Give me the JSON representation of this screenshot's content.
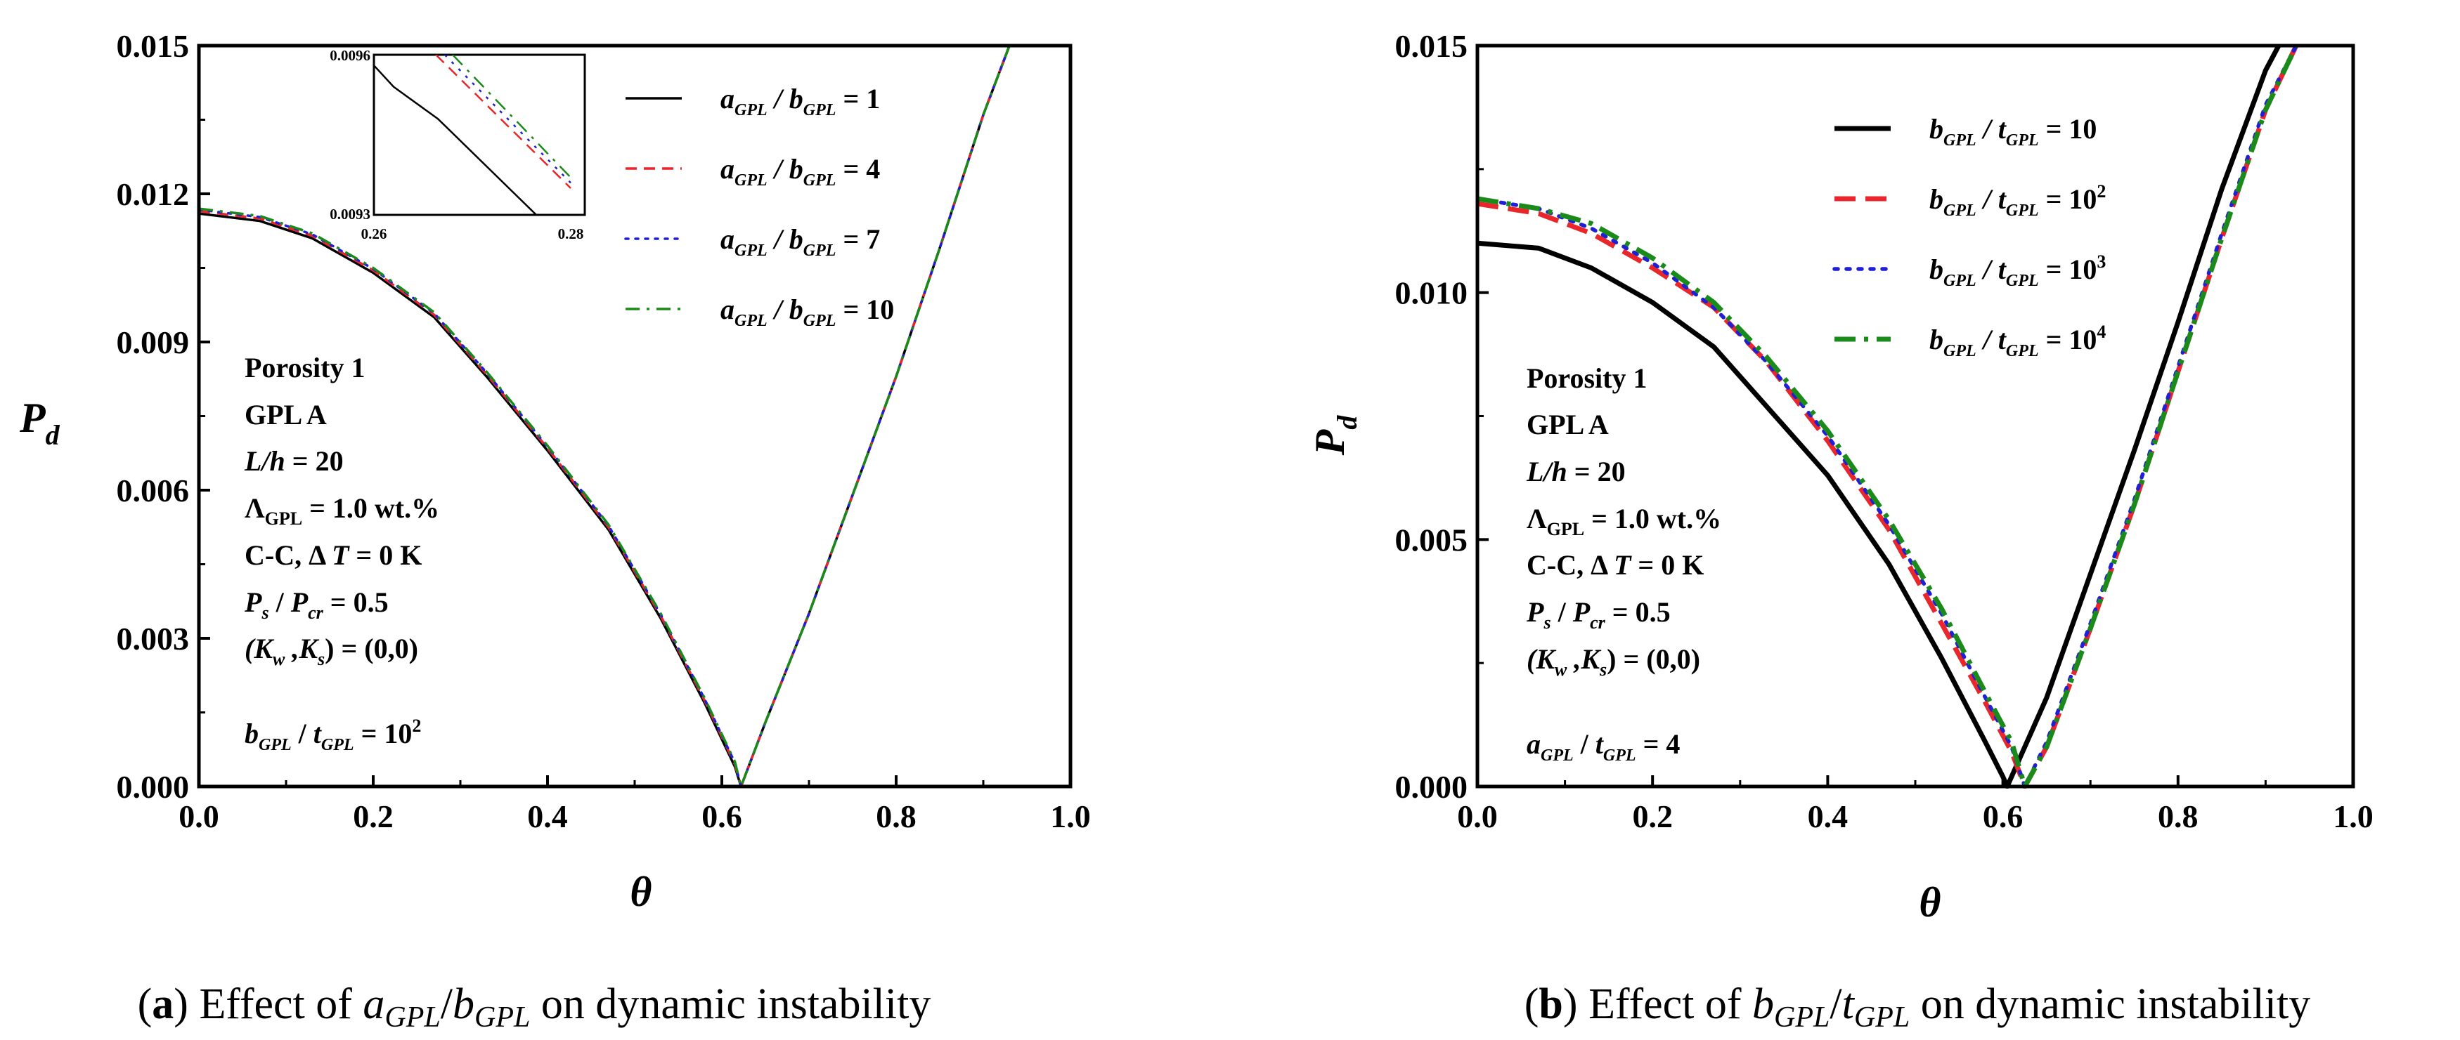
{
  "chart_data": [
    {
      "type": "line",
      "panel": "a",
      "caption": {
        "label": "a",
        "text_before": "Effect of ",
        "formula": "a_{GPL}/b_{GPL}",
        "text_after": " on dynamic instability"
      },
      "xlabel": "θ",
      "ylabel": "P_d",
      "xlim": [
        0,
        1.0
      ],
      "ylim": [
        0,
        0.015
      ],
      "xticks": [
        "0.0",
        "0.2",
        "0.4",
        "0.6",
        "0.8",
        "1.0"
      ],
      "yticks": [
        "0.000",
        "0.003",
        "0.006",
        "0.009",
        "0.012",
        "0.015"
      ],
      "legend_position": "top-right",
      "series": [
        {
          "name": "a_GPL / b_GPL = 1",
          "color": "#000000",
          "dash": "solid",
          "x": [
            0,
            0.07,
            0.13,
            0.2,
            0.27,
            0.33,
            0.4,
            0.47,
            0.53,
            0.58,
            0.615,
            0.622,
            0.65,
            0.7,
            0.75,
            0.8,
            0.85,
            0.9,
            0.93
          ],
          "y": [
            0.0116,
            0.01145,
            0.0111,
            0.0104,
            0.0095,
            0.0083,
            0.0068,
            0.0052,
            0.0034,
            0.0017,
            0.0004,
            0.0,
            0.0013,
            0.0035,
            0.0059,
            0.0083,
            0.0109,
            0.0136,
            0.015
          ]
        },
        {
          "name": "a_GPL / b_GPL = 4",
          "color": "#e8262b",
          "dash": "dashed",
          "x": [
            0,
            0.07,
            0.13,
            0.2,
            0.27,
            0.33,
            0.4,
            0.47,
            0.53,
            0.58,
            0.615,
            0.622,
            0.65,
            0.7,
            0.75,
            0.8,
            0.85,
            0.9,
            0.93
          ],
          "y": [
            0.01165,
            0.0115,
            0.01115,
            0.01045,
            0.00955,
            0.00835,
            0.00685,
            0.00525,
            0.00345,
            0.00175,
            0.00045,
            0.0,
            0.0013,
            0.0035,
            0.0059,
            0.0083,
            0.0109,
            0.0136,
            0.015
          ]
        },
        {
          "name": "a_GPL / b_GPL = 7",
          "color": "#1f1fd6",
          "dash": "dotted",
          "x": [
            0,
            0.07,
            0.13,
            0.2,
            0.27,
            0.33,
            0.4,
            0.47,
            0.53,
            0.58,
            0.615,
            0.622,
            0.65,
            0.7,
            0.75,
            0.8,
            0.85,
            0.9,
            0.93
          ],
          "y": [
            0.01168,
            0.01153,
            0.01118,
            0.01048,
            0.00958,
            0.00838,
            0.00688,
            0.00528,
            0.00348,
            0.00178,
            0.00048,
            0.0,
            0.0013,
            0.0035,
            0.0059,
            0.0083,
            0.0109,
            0.0136,
            0.015
          ]
        },
        {
          "name": "a_GPL / b_GPL = 10",
          "color": "#1a8a1a",
          "dash": "dashdot",
          "x": [
            0,
            0.07,
            0.13,
            0.2,
            0.27,
            0.33,
            0.4,
            0.47,
            0.53,
            0.58,
            0.615,
            0.622,
            0.65,
            0.7,
            0.75,
            0.8,
            0.85,
            0.9,
            0.93
          ],
          "y": [
            0.0117,
            0.01155,
            0.0112,
            0.0105,
            0.0096,
            0.0084,
            0.0069,
            0.0053,
            0.0035,
            0.0018,
            0.0005,
            0.0,
            0.0013,
            0.0035,
            0.0059,
            0.0083,
            0.0109,
            0.0136,
            0.015
          ]
        }
      ],
      "legend": [
        {
          "a": "a",
          "as": "GPL",
          "b": "b",
          "bs": "GPL",
          "val": "= 1"
        },
        {
          "a": "a",
          "as": "GPL",
          "b": "b",
          "bs": "GPL",
          "val": "= 4"
        },
        {
          "a": "a",
          "as": "GPL",
          "b": "b",
          "bs": "GPL",
          "val": "= 7"
        },
        {
          "a": "a",
          "as": "GPL",
          "b": "b",
          "bs": "GPL",
          "val": "= 10"
        }
      ],
      "inset": {
        "xlim": [
          0.26,
          0.28
        ],
        "ylim": [
          0.0093,
          0.0096
        ],
        "xticks": [
          "0.26",
          "0.28"
        ],
        "yticks": [
          "0.0093",
          "0.0096"
        ],
        "series": [
          {
            "x": [
              0.26,
              0.262,
              0.2665,
              0.2765
            ],
            "y": [
              0.00958,
              0.00954,
              0.00948,
              0.0093
            ]
          },
          {
            "x": [
              0.2663,
              0.28
            ],
            "y": [
              0.0096,
              0.00935
            ]
          },
          {
            "x": [
              0.2672,
              0.28
            ],
            "y": [
              0.0096,
              0.00936
            ]
          },
          {
            "x": [
              0.268,
              0.28
            ],
            "y": [
              0.0096,
              0.00937
            ]
          }
        ]
      },
      "annotations": {
        "porosity": "Porosity 1",
        "gpl": "GPL A",
        "lh_label": "L/h",
        "lh_value": "= 20",
        "lambda_symbol": "Λ",
        "lambda_sub": "GPL",
        "lambda_value": "= 1.0 wt.%",
        "bc_label": "C-C,",
        "delta": "Δ",
        "temp_var": "T",
        "temp_value": "= 0 K",
        "ps": "P",
        "ps_sub": "s",
        "pcr": "P",
        "pcr_sub": "cr",
        "ratio_value": "= 0.5",
        "k_open": "(",
        "kw": "K",
        "kw_sub": "w",
        "k_comma": " ,",
        "ks": "K",
        "ks_sub": "s",
        "k_close": ") = (0,0)",
        "fixed_num": "b",
        "fixed_num_sub": "GPL",
        "fixed_den": "t",
        "fixed_den_sub": "GPL",
        "fixed_value": "= 10",
        "fixed_exp": "2"
      }
    },
    {
      "type": "line",
      "panel": "b",
      "caption": {
        "label": "b",
        "text_before": "Effect of ",
        "formula": "b_{GPL}/t_{GPL}",
        "text_after": " on dynamic instability"
      },
      "xlabel": "θ",
      "ylabel": "P_d",
      "xlim": [
        0,
        1.0
      ],
      "ylim": [
        0,
        0.015
      ],
      "xticks": [
        "0.0",
        "0.2",
        "0.4",
        "0.6",
        "0.8",
        "1.0"
      ],
      "yticks": [
        "0.000",
        "0.005",
        "0.010",
        "0.015"
      ],
      "legend_position": "top-right",
      "series": [
        {
          "name": "b_GPL / t_GPL = 10",
          "color": "#000000",
          "dash": "solid",
          "x": [
            0,
            0.07,
            0.13,
            0.2,
            0.27,
            0.33,
            0.4,
            0.47,
            0.53,
            0.58,
            0.6,
            0.605,
            0.65,
            0.7,
            0.75,
            0.8,
            0.85,
            0.9,
            0.915
          ],
          "y": [
            0.011,
            0.0109,
            0.0105,
            0.0098,
            0.0089,
            0.0077,
            0.0063,
            0.0045,
            0.0026,
            0.0009,
            0.0002,
            0.0,
            0.0018,
            0.0043,
            0.0068,
            0.0094,
            0.0121,
            0.0145,
            0.015
          ]
        },
        {
          "name": "b_GPL / t_GPL = 10^2",
          "color": "#e8262b",
          "dash": "dashed",
          "x": [
            0,
            0.07,
            0.13,
            0.2,
            0.27,
            0.33,
            0.4,
            0.47,
            0.53,
            0.58,
            0.61,
            0.625,
            0.65,
            0.7,
            0.75,
            0.8,
            0.85,
            0.9,
            0.935
          ],
          "y": [
            0.0118,
            0.0116,
            0.0112,
            0.0105,
            0.0097,
            0.0086,
            0.007,
            0.0052,
            0.0033,
            0.0017,
            0.0007,
            0.0,
            0.0008,
            0.0032,
            0.0057,
            0.0084,
            0.0111,
            0.0137,
            0.015
          ]
        },
        {
          "name": "b_GPL / t_GPL = 10^3",
          "color": "#1f1fd6",
          "dash": "dotted",
          "x": [
            0,
            0.07,
            0.13,
            0.2,
            0.27,
            0.33,
            0.4,
            0.47,
            0.53,
            0.58,
            0.61,
            0.625,
            0.65,
            0.7,
            0.75,
            0.8,
            0.85,
            0.9,
            0.935
          ],
          "y": [
            0.0119,
            0.0117,
            0.0113,
            0.0106,
            0.0097,
            0.0086,
            0.0071,
            0.0053,
            0.0035,
            0.0018,
            0.0008,
            0.0,
            0.0009,
            0.0033,
            0.0058,
            0.0085,
            0.0112,
            0.0138,
            0.015
          ]
        },
        {
          "name": "b_GPL / t_GPL = 10^4",
          "color": "#1a8a1a",
          "dash": "dashdot",
          "x": [
            0,
            0.07,
            0.13,
            0.2,
            0.27,
            0.33,
            0.4,
            0.47,
            0.53,
            0.58,
            0.61,
            0.625,
            0.65,
            0.7,
            0.75,
            0.8,
            0.85,
            0.9,
            0.935
          ],
          "y": [
            0.0119,
            0.0117,
            0.0114,
            0.0107,
            0.0098,
            0.0087,
            0.0072,
            0.0054,
            0.0036,
            0.0019,
            0.0009,
            0.0,
            0.0008,
            0.0032,
            0.0057,
            0.0084,
            0.0111,
            0.0137,
            0.015
          ]
        }
      ],
      "legend": [
        {
          "a": "b",
          "as": "GPL",
          "b": "t",
          "bs": "GPL",
          "val": "= 10",
          "exp": ""
        },
        {
          "a": "b",
          "as": "GPL",
          "b": "t",
          "bs": "GPL",
          "val": "= 10",
          "exp": "2"
        },
        {
          "a": "b",
          "as": "GPL",
          "b": "t",
          "bs": "GPL",
          "val": "= 10",
          "exp": "3"
        },
        {
          "a": "b",
          "as": "GPL",
          "b": "t",
          "bs": "GPL",
          "val": "= 10",
          "exp": "4"
        }
      ],
      "annotations": {
        "porosity": "Porosity 1",
        "gpl": "GPL A",
        "lh_label": "L/h",
        "lh_value": "= 20",
        "lambda_symbol": "Λ",
        "lambda_sub": "GPL",
        "lambda_value": "= 1.0 wt.%",
        "bc_label": "C-C,",
        "delta": "Δ",
        "temp_var": "T",
        "temp_value": "= 0 K",
        "ps": "P",
        "ps_sub": "s",
        "pcr": "P",
        "pcr_sub": "cr",
        "ratio_value": "= 0.5",
        "k_open": "(",
        "kw": "K",
        "kw_sub": "w",
        "k_comma": " ,",
        "ks": "K",
        "ks_sub": "s",
        "k_close": ") = (0,0)",
        "fixed_num": "a",
        "fixed_num_sub": "GPL",
        "fixed_den": "t",
        "fixed_den_sub": "GPL",
        "fixed_value": "= 4"
      }
    }
  ]
}
